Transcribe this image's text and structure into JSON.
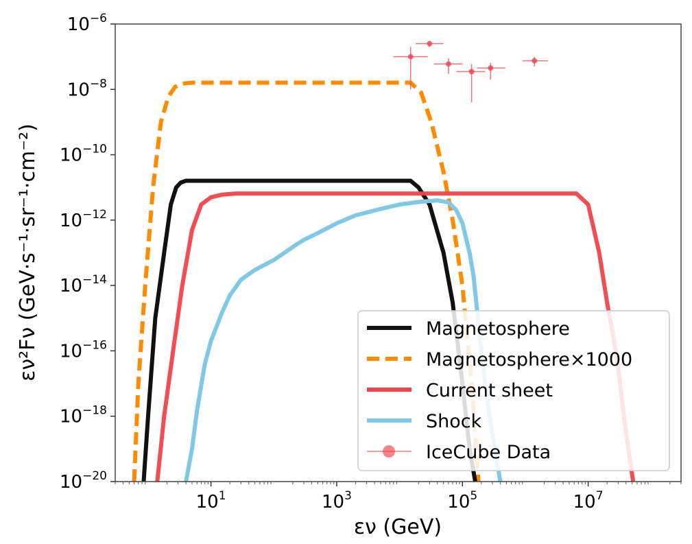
{
  "chart_data": {
    "type": "line",
    "xscale": "log",
    "yscale": "log",
    "xlim": [
      0.3,
      300000000
    ],
    "ylim": [
      1e-20,
      1e-06
    ],
    "xlabel": "εν (GeV)",
    "ylabel": "εν²Fν (GeV·s⁻¹·sr⁻¹·cm⁻²)",
    "xticks": [
      {
        "value": 10,
        "base": "10",
        "exp": "1"
      },
      {
        "value": 1000,
        "base": "10",
        "exp": "3"
      },
      {
        "value": 100000,
        "base": "10",
        "exp": "5"
      },
      {
        "value": 10000000,
        "base": "10",
        "exp": "7"
      }
    ],
    "yticks": [
      {
        "value": 1e-20,
        "base": "10",
        "exp": "−20"
      },
      {
        "value": 1e-18,
        "base": "10",
        "exp": "−18"
      },
      {
        "value": 1e-16,
        "base": "10",
        "exp": "−16"
      },
      {
        "value": 1e-14,
        "base": "10",
        "exp": "−14"
      },
      {
        "value": 1e-12,
        "base": "10",
        "exp": "−12"
      },
      {
        "value": 1e-10,
        "base": "10",
        "exp": "−10"
      },
      {
        "value": 1e-08,
        "base": "10",
        "exp": "−8"
      },
      {
        "value": 1e-06,
        "base": "10",
        "exp": "−6"
      }
    ],
    "legend_position": "lower-right",
    "grid": false,
    "series": [
      {
        "name": "Magnetosphere",
        "color": "#111111",
        "style": "solid",
        "x": [
          0.85,
          1.0,
          1.3,
          1.8,
          2.3,
          2.8,
          3.3,
          4,
          5,
          10,
          100,
          1000,
          10000,
          15000,
          20000,
          30000,
          50000,
          70000,
          100000,
          130000,
          160000
        ],
        "y": [
          1e-20,
          1e-18,
          1e-15,
          1e-13,
          3e-12,
          1e-11,
          1.4e-11,
          1.6e-11,
          1.6e-11,
          1.6e-11,
          1.6e-11,
          1.6e-11,
          1.6e-11,
          1.6e-11,
          1e-11,
          3e-12,
          1e-13,
          3e-15,
          1e-17,
          1e-19,
          1e-20
        ]
      },
      {
        "name": "Magnetosphere×1000",
        "color": "#ff8c00",
        "style": "dashed",
        "x": [
          0.6,
          0.7,
          0.9,
          1.2,
          1.6,
          2.1,
          2.7,
          3.5,
          5,
          10,
          100,
          1000,
          10000,
          15000,
          22000,
          32000,
          50000,
          70000,
          100000,
          140000,
          180000
        ],
        "y": [
          1e-20,
          1e-17,
          1e-14,
          1e-11,
          1e-09,
          6e-09,
          1.2e-08,
          1.5e-08,
          1.6e-08,
          1.6e-08,
          1.6e-08,
          1.6e-08,
          1.6e-08,
          1.6e-08,
          8e-09,
          1e-09,
          3e-11,
          1e-12,
          1e-14,
          1e-17,
          1e-20
        ]
      },
      {
        "name": "Current sheet",
        "color": "#f0444a",
        "style": "solid",
        "x": [
          1.4,
          1.8,
          2.5,
          3.5,
          5,
          7,
          10,
          15,
          25,
          50,
          100,
          1000,
          10000,
          100000,
          1000000,
          6500000,
          10000000,
          15000000,
          20000000,
          25000000,
          30000000,
          40000000,
          52000000
        ],
        "y": [
          1e-20,
          1e-18,
          1e-16,
          1e-14,
          5e-13,
          3e-12,
          5e-12,
          6e-12,
          6.5e-12,
          6.5e-12,
          6.5e-12,
          6.5e-12,
          6.5e-12,
          6.5e-12,
          6.5e-12,
          6.5e-12,
          3e-12,
          1e-13,
          3e-15,
          3e-16,
          3e-17,
          3e-19,
          1e-20
        ]
      },
      {
        "name": "Shock",
        "color": "#7fc8e6",
        "style": "solid",
        "x": [
          4,
          5,
          6,
          8,
          10,
          15,
          20,
          30,
          50,
          100,
          200,
          300,
          500,
          1000,
          2000,
          5000,
          10000,
          20000,
          40000,
          60000,
          80000,
          100000,
          130000,
          150000,
          200000,
          270000,
          400000
        ],
        "y": [
          1e-20,
          1e-19,
          1.5e-18,
          4e-17,
          2e-16,
          1.5e-15,
          5e-15,
          1.5e-14,
          3e-14,
          6e-14,
          1.5e-13,
          2.5e-13,
          4e-13,
          8e-13,
          1.4e-12,
          2.2e-12,
          3e-12,
          3.6e-12,
          4e-12,
          3.5e-12,
          2e-12,
          8e-13,
          1e-13,
          2e-14,
          1e-16,
          1e-18,
          1e-20
        ]
      }
    ],
    "data_points": {
      "name": "IceCube Data",
      "color": "#f0444a",
      "points": [
        {
          "x": 15000,
          "y": 1e-07,
          "xerr": [
            8000,
            28000
          ],
          "yerr": [
            1e-08,
            2e-07
          ]
        },
        {
          "x": 30000,
          "y": 2.5e-07,
          "xerr": [
            18000,
            50000
          ],
          "yerr": [
            2e-07,
            3e-07
          ]
        },
        {
          "x": 60000,
          "y": 6e-08,
          "xerr": [
            35000,
            100000
          ],
          "yerr": [
            3e-08,
            9e-08
          ]
        },
        {
          "x": 140000,
          "y": 3.5e-08,
          "xerr": [
            80000,
            230000
          ],
          "yerr": [
            4e-09,
            6e-08
          ]
        },
        {
          "x": 280000,
          "y": 4.5e-08,
          "xerr": [
            170000,
            480000
          ],
          "yerr": [
            2e-08,
            6.5e-08
          ]
        },
        {
          "x": 1400000,
          "y": 7.5e-08,
          "xerr": [
            900000,
            2300000
          ],
          "yerr": [
            5e-08,
            1e-07
          ]
        }
      ]
    }
  }
}
